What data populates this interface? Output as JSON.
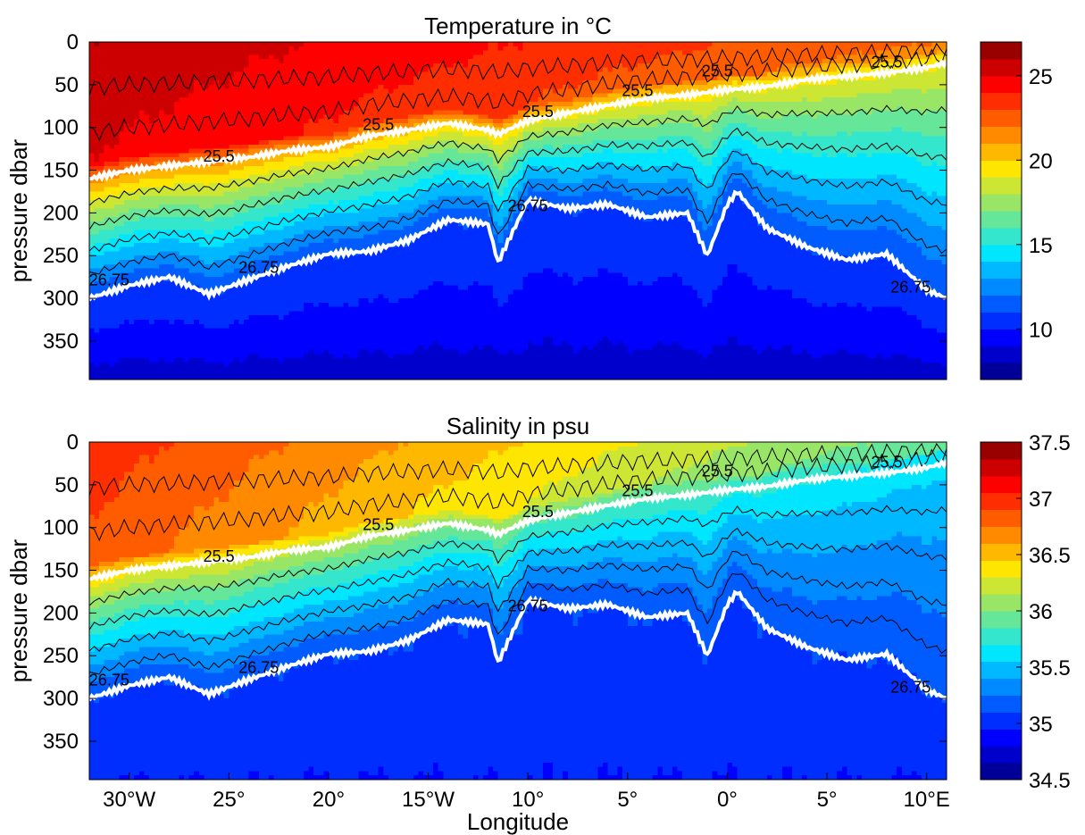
{
  "chart_data": [
    {
      "type": "heatmap",
      "title": "Temperature in °C",
      "ylabel": "pressure dbar",
      "xlabel": "",
      "xlim": [
        -32,
        11
      ],
      "ylim": [
        0,
        395
      ],
      "y_reversed": true,
      "y_ticks": [
        "0",
        "50",
        "100",
        "150",
        "200",
        "250",
        "300",
        "350"
      ],
      "y_tick_values": [
        0,
        50,
        100,
        150,
        200,
        250,
        300,
        350
      ],
      "x_ticks": [],
      "colorbar": {
        "range": [
          7,
          27
        ],
        "ticks": [
          "10",
          "15",
          "20",
          "25"
        ],
        "tick_values": [
          10,
          15,
          20,
          25
        ],
        "colormap": "jet"
      },
      "field": {
        "surface": {
          "west": 26,
          "east": 22
        },
        "bottom": 8.5,
        "deep_plateau": 11,
        "thermocline_dz": 10
      },
      "isopycnals": [
        {
          "label": "25.5",
          "color": "#ffffff",
          "x": [
            -32,
            -30,
            -28,
            -26,
            -24,
            -22,
            -20,
            -18,
            -16,
            -14,
            -12,
            -11.5,
            -10,
            -8,
            -6,
            -4,
            -2,
            0,
            2,
            4,
            6,
            8,
            10,
            11
          ],
          "p": [
            160,
            150,
            145,
            140,
            135,
            127,
            123,
            110,
            103,
            95,
            103,
            108,
            92,
            83,
            74,
            66,
            62,
            56,
            52,
            44,
            40,
            36,
            30,
            24
          ]
        },
        {
          "label": "26.75",
          "color": "#ffffff",
          "x": [
            -32,
            -30,
            -28,
            -26,
            -24,
            -22,
            -20,
            -18,
            -16,
            -14,
            -12,
            -11.5,
            -10,
            -8,
            -6,
            -4,
            -2,
            -1,
            0,
            0.5,
            2,
            4,
            6,
            8,
            10,
            11
          ],
          "p": [
            300,
            285,
            275,
            295,
            278,
            262,
            248,
            245,
            232,
            208,
            213,
            258,
            185,
            195,
            190,
            205,
            200,
            250,
            190,
            175,
            218,
            240,
            255,
            248,
            290,
            300
          ]
        }
      ],
      "contour_labels": [
        {
          "text": "25.5",
          "x": -25.5,
          "p": 140
        },
        {
          "text": "25.5",
          "x": -17.5,
          "p": 103
        },
        {
          "text": "25.5",
          "x": -9.5,
          "p": 88
        },
        {
          "text": "25.5",
          "x": -4.5,
          "p": 63
        },
        {
          "text": "25.5",
          "x": -0.5,
          "p": 40
        },
        {
          "text": "25.5",
          "x": 8,
          "p": 30
        },
        {
          "text": "26.75",
          "x": -31,
          "p": 285
        },
        {
          "text": "26.75",
          "x": -23.5,
          "p": 270
        },
        {
          "text": "26.75",
          "x": -10,
          "p": 198
        },
        {
          "text": "26.75",
          "x": 9.2,
          "p": 293
        }
      ]
    },
    {
      "type": "heatmap",
      "title": "Salinity in psu",
      "ylabel": "pressure dbar",
      "xlabel": "Longitude",
      "xlim": [
        -32,
        11
      ],
      "ylim": [
        0,
        395
      ],
      "y_reversed": true,
      "y_ticks": [
        "0",
        "50",
        "100",
        "150",
        "200",
        "250",
        "300",
        "350"
      ],
      "y_tick_values": [
        0,
        50,
        100,
        150,
        200,
        250,
        300,
        350
      ],
      "x_ticks": [
        "30°W",
        "25°",
        "20°",
        "15°W",
        "10°",
        "5°",
        "0°",
        "5°",
        "10°E"
      ],
      "x_tick_values": [
        -30,
        -25,
        -20,
        -15,
        -10,
        -5,
        0,
        5,
        10
      ],
      "colorbar": {
        "range": [
          34.5,
          37.5
        ],
        "ticks": [
          "34.5",
          "35",
          "35.5",
          "36",
          "36.5",
          "37",
          "37.5"
        ],
        "tick_values": [
          34.5,
          35,
          35.5,
          36,
          36.5,
          37,
          37.5
        ],
        "colormap": "jet"
      },
      "field": {
        "surface": {
          "west": 37.0,
          "east": 35.9
        },
        "bottom": 34.95,
        "deep_plateau": 35.1,
        "thermocline_dz": 10
      },
      "isopycnals": [
        {
          "label": "25.5",
          "color": "#ffffff",
          "x": [
            -32,
            -30,
            -28,
            -26,
            -24,
            -22,
            -20,
            -18,
            -16,
            -14,
            -12,
            -11.5,
            -10,
            -8,
            -6,
            -4,
            -2,
            0,
            2,
            4,
            6,
            8,
            10,
            11
          ],
          "p": [
            160,
            150,
            145,
            140,
            135,
            127,
            123,
            110,
            103,
            95,
            103,
            108,
            92,
            83,
            74,
            66,
            62,
            56,
            52,
            44,
            40,
            36,
            30,
            24
          ]
        },
        {
          "label": "26.75",
          "color": "#ffffff",
          "x": [
            -32,
            -30,
            -28,
            -26,
            -24,
            -22,
            -20,
            -18,
            -16,
            -14,
            -12,
            -11.5,
            -10,
            -8,
            -6,
            -4,
            -2,
            -1,
            0,
            0.5,
            2,
            4,
            6,
            8,
            10,
            11
          ],
          "p": [
            300,
            285,
            275,
            295,
            278,
            262,
            248,
            245,
            232,
            208,
            213,
            258,
            185,
            195,
            190,
            205,
            200,
            250,
            190,
            175,
            218,
            240,
            255,
            248,
            290,
            300
          ]
        }
      ],
      "contour_labels": [
        {
          "text": "25.5",
          "x": -25.5,
          "p": 140
        },
        {
          "text": "25.5",
          "x": -17.5,
          "p": 103
        },
        {
          "text": "25.5",
          "x": -9.5,
          "p": 88
        },
        {
          "text": "25.5",
          "x": -4.5,
          "p": 63
        },
        {
          "text": "25.5",
          "x": -0.5,
          "p": 40
        },
        {
          "text": "25.5",
          "x": 8,
          "p": 30
        },
        {
          "text": "26.75",
          "x": -31,
          "p": 285
        },
        {
          "text": "26.75",
          "x": -23.5,
          "p": 270
        },
        {
          "text": "26.75",
          "x": -10,
          "p": 198
        },
        {
          "text": "26.75",
          "x": 9.2,
          "p": 293
        }
      ]
    }
  ]
}
